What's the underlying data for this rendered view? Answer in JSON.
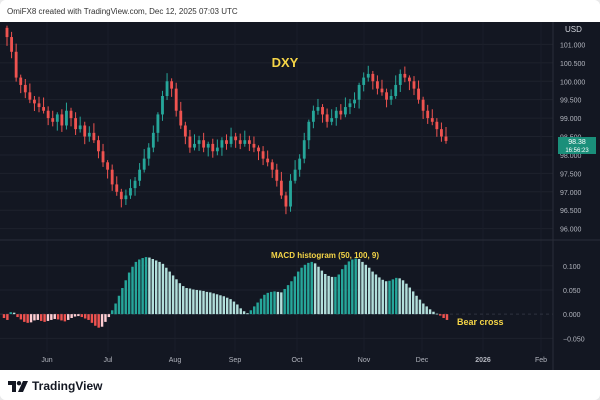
{
  "header": {
    "caption": "OmiFX8 created with TradingView.com, Dec 12, 2025 07:03 UTC"
  },
  "footer": {
    "brand": "TradingView"
  },
  "chart_data": [
    {
      "type": "candlestick",
      "title": "DXY",
      "currency": "USD",
      "last_price_label": "98.38",
      "countdown_label": "16:56:23",
      "ylim": [
        95.8,
        101.5
      ],
      "y_ticks": [
        "101.000",
        "100.500",
        "100.000",
        "99.500",
        "99.000",
        "98.500",
        "98.000",
        "97.500",
        "97.000",
        "96.500",
        "96.000"
      ],
      "y_tick_values": [
        101,
        100.5,
        100,
        99.5,
        99,
        98.5,
        98,
        97.5,
        97,
        96.5,
        96
      ],
      "x_ticks": [
        "Jun",
        "Jul",
        "Aug",
        "Sep",
        "Oct",
        "Nov",
        "Dec",
        "2026",
        "Feb"
      ],
      "closes": [
        101.2,
        100.8,
        100.1,
        99.9,
        99.7,
        99.5,
        99.4,
        99.3,
        99.2,
        99.0,
        98.9,
        99.1,
        98.8,
        99.2,
        99.0,
        98.7,
        98.8,
        98.5,
        98.6,
        98.4,
        98.1,
        97.8,
        97.6,
        97.2,
        97.0,
        96.8,
        96.9,
        97.1,
        97.3,
        97.6,
        97.9,
        98.2,
        98.6,
        99.1,
        99.6,
        100.0,
        99.8,
        99.2,
        98.8,
        98.5,
        98.2,
        98.3,
        98.4,
        98.2,
        98.3,
        98.1,
        98.2,
        98.4,
        98.3,
        98.5,
        98.4,
        98.3,
        98.4,
        98.3,
        98.2,
        98.1,
        97.9,
        97.8,
        97.6,
        97.3,
        96.9,
        96.6,
        97.3,
        97.6,
        97.9,
        98.4,
        98.9,
        99.2,
        99.3,
        99.1,
        98.9,
        99.0,
        99.2,
        99.1,
        99.3,
        99.4,
        99.5,
        99.9,
        100.1,
        100.2,
        100.0,
        99.8,
        99.7,
        99.5,
        99.6,
        99.9,
        100.2,
        100.1,
        100.0,
        99.8,
        99.5,
        99.2,
        99.0,
        98.9,
        98.7,
        98.5,
        98.38
      ],
      "subchart": {
        "title": "MACD histogram (50, 100, 9)",
        "annotation": "Bear cross",
        "ylim": [
          -0.07,
          0.145
        ],
        "y_ticks": [
          "0.100",
          "0.050",
          "0.000",
          "−0.050"
        ],
        "y_tick_values": [
          0.1,
          0.05,
          0,
          -0.05
        ],
        "values": [
          -0.008,
          -0.012,
          0.004,
          0.003,
          -0.006,
          -0.011,
          -0.016,
          -0.018,
          -0.017,
          -0.013,
          -0.012,
          -0.014,
          -0.016,
          -0.014,
          -0.012,
          -0.01,
          -0.011,
          -0.013,
          -0.015,
          -0.012,
          -0.008,
          -0.005,
          -0.004,
          -0.006,
          -0.009,
          -0.012,
          -0.018,
          -0.024,
          -0.028,
          -0.026,
          -0.016,
          -0.006,
          0.008,
          0.022,
          0.038,
          0.054,
          0.07,
          0.086,
          0.098,
          0.108,
          0.113,
          0.116,
          0.118,
          0.117,
          0.114,
          0.111,
          0.108,
          0.104,
          0.096,
          0.088,
          0.08,
          0.072,
          0.064,
          0.058,
          0.054,
          0.053,
          0.051,
          0.05,
          0.049,
          0.048,
          0.046,
          0.045,
          0.043,
          0.041,
          0.039,
          0.037,
          0.034,
          0.031,
          0.026,
          0.02,
          0.012,
          0.006,
          0.002,
          0.008,
          0.016,
          0.024,
          0.032,
          0.04,
          0.044,
          0.046,
          0.047,
          0.046,
          0.045,
          0.052,
          0.06,
          0.068,
          0.078,
          0.088,
          0.096,
          0.102,
          0.106,
          0.108,
          0.105,
          0.098,
          0.09,
          0.083,
          0.079,
          0.077,
          0.077,
          0.082,
          0.093,
          0.102,
          0.109,
          0.113,
          0.115,
          0.114,
          0.108,
          0.102,
          0.096,
          0.088,
          0.082,
          0.076,
          0.071,
          0.068,
          0.069,
          0.072,
          0.075,
          0.074,
          0.07,
          0.063,
          0.055,
          0.047,
          0.038,
          0.03,
          0.022,
          0.016,
          0.01,
          0.005,
          0.001,
          -0.003,
          -0.008,
          -0.012
        ]
      }
    }
  ]
}
